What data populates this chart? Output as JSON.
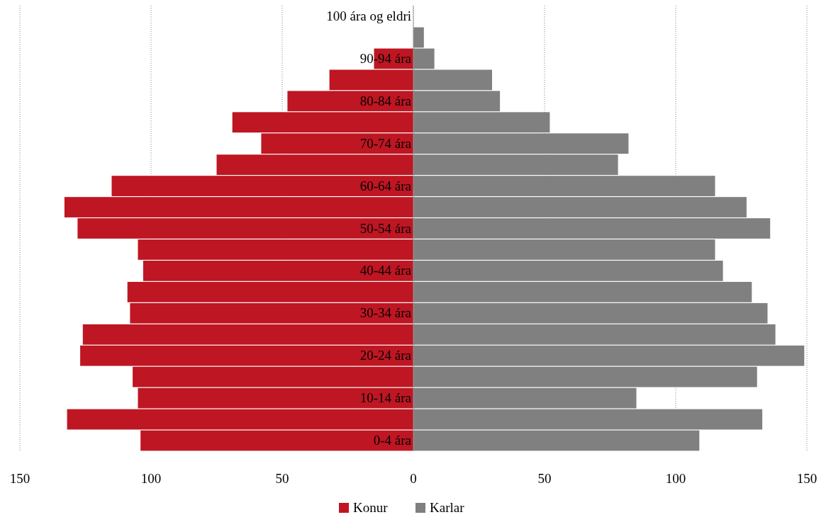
{
  "chart_data": {
    "type": "bar",
    "orientation": "horizontal",
    "stacked": true,
    "categories": [
      "100 ára og eldri",
      null,
      "90-94 ára",
      null,
      "80-84 ára",
      null,
      "70-74 ára",
      null,
      "60-64 ára",
      null,
      "50-54 ára",
      null,
      "40-44 ára",
      null,
      "30-34 ára",
      null,
      "20-24 ára",
      null,
      "10-14 ára",
      null,
      "0-4 ára"
    ],
    "series": [
      {
        "name": "Konur",
        "color": "#be1622",
        "values": [
          0,
          0,
          -15,
          -32,
          -48,
          -69,
          -58,
          -75,
          -115,
          -133,
          -128,
          -105,
          -103,
          -109,
          -108,
          -126,
          -127,
          -107,
          -105,
          -132,
          -104
        ]
      },
      {
        "name": "Karlar",
        "color": "#808080",
        "values": [
          0,
          4,
          8,
          30,
          33,
          52,
          82,
          78,
          115,
          127,
          136,
          115,
          118,
          129,
          135,
          138,
          149,
          131,
          85,
          133,
          109
        ]
      }
    ],
    "xlim": [
      -150,
      150
    ],
    "xticks": [
      {
        "value": -150,
        "label": "150"
      },
      {
        "value": -100,
        "label": "100"
      },
      {
        "value": -50,
        "label": "50"
      },
      0,
      50,
      100,
      150
    ],
    "grid": "x",
    "legend": "bottom"
  }
}
